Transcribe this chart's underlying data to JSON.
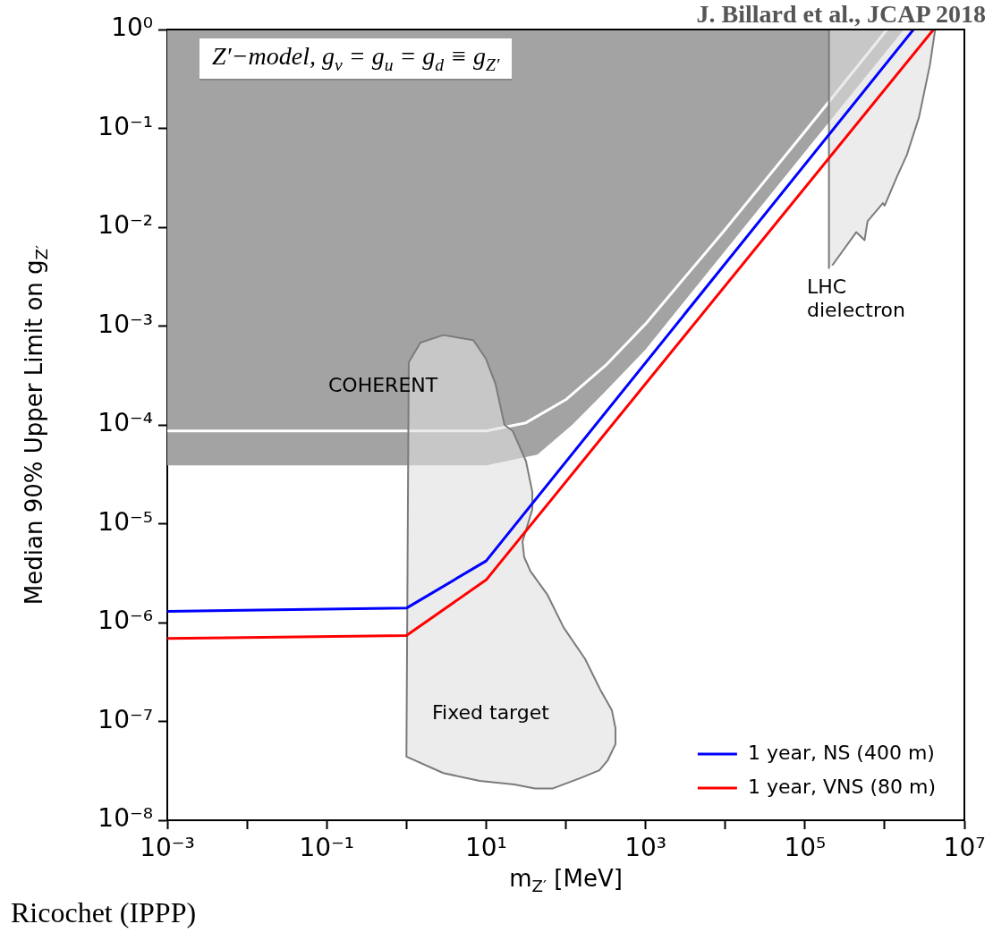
{
  "chart_data": {
    "type": "line",
    "title": "J. Billard et al.,  JCAP 2018",
    "xlabel": "m$_{Z′}$ [MeV]",
    "ylabel": "Median 90% Upper Limit on g$_{Z′}$",
    "log": "xy",
    "grid": false,
    "legend": "bottom right",
    "xlim": [
      0.001,
      10000000
    ],
    "ylim": [
      1e-08,
      1
    ],
    "xticks": [
      {
        "value": 0.001,
        "label": "10⁻³"
      },
      {
        "value": 0.01,
        "label": null
      },
      {
        "value": 0.1,
        "label": "10⁻¹"
      },
      {
        "value": 1,
        "label": null
      },
      {
        "value": 10,
        "label": "10¹"
      },
      {
        "value": 100,
        "label": null
      },
      {
        "value": 1000,
        "label": "10³"
      },
      {
        "value": 10000,
        "label": null
      },
      {
        "value": 100000,
        "label": "10⁵"
      },
      {
        "value": 1000000,
        "label": null
      },
      {
        "value": 10000000,
        "label": "10⁷"
      }
    ],
    "yticks": [
      {
        "value": 1e-08,
        "label": "10⁻⁸"
      },
      {
        "value": 1e-07,
        "label": "10⁻⁷"
      },
      {
        "value": 1e-06,
        "label": "10⁻⁶"
      },
      {
        "value": 1e-05,
        "label": "10⁻⁵"
      },
      {
        "value": 0.0001,
        "label": "10⁻⁴"
      },
      {
        "value": 0.001,
        "label": "10⁻³"
      },
      {
        "value": 0.01,
        "label": "10⁻²"
      },
      {
        "value": 0.1,
        "label": "10⁻¹"
      },
      {
        "value": 1,
        "label": "10⁰"
      }
    ],
    "series": [
      {
        "type": "area",
        "color": "#a3a3a3",
        "x": [
          0.001,
          10,
          44,
          120,
          316,
          1000,
          10000,
          100000,
          1740000,
          0.001
        ],
        "values": [
          3.9e-05,
          3.9e-05,
          5e-05,
          0.0001,
          0.00022,
          0.00058,
          0.0058,
          0.058,
          1,
          1
        ]
      },
      {
        "color": "#ffffff",
        "x": [
          0.001,
          10,
          31.6,
          100,
          316,
          1000,
          10000,
          100000,
          1070000
        ],
        "values": [
          8.7e-05,
          8.7e-05,
          0.000105,
          0.00018,
          0.0004,
          0.00105,
          0.0095,
          0.093,
          1
        ]
      },
      {
        "type": "area",
        "color": "#e0e0e0",
        "x": [
          200000,
          200000,
          4300000,
          3700000,
          2700000,
          1900000,
          1440000,
          1000000,
          950000,
          610000,
          560000,
          440000,
          220000
        ],
        "values": [
          0.0038,
          1,
          1,
          0.44,
          0.13,
          0.054,
          0.033,
          0.0165,
          0.0175,
          0.0115,
          0.0074,
          0.0089,
          0.0041
        ]
      },
      {
        "type": "area",
        "color": "#e0e0e0",
        "x": [
          1.07,
          1.5,
          2.9,
          6.9,
          9.9,
          13.1,
          17,
          21.5,
          31.6,
          38,
          38,
          28.6,
          30,
          36,
          59,
          94,
          174,
          270,
          378,
          420,
          420,
          333,
          264,
          157,
          69,
          41,
          22.6,
          8.3,
          2.9,
          1.0,
          1.07
        ],
        "values": [
          0.00043,
          0.00068,
          0.00081,
          0.00072,
          0.00047,
          0.00026,
          0.0001,
          8.7e-05,
          4.3e-05,
          2.1e-05,
          1.4e-05,
          6.6e-06,
          4.6e-06,
          3.3e-06,
          1.9e-06,
          8.9e-07,
          4.3e-07,
          2.1e-07,
          1.3e-07,
          8.5e-08,
          5.9e-08,
          4e-08,
          3.2e-08,
          2.7e-08,
          2.1e-08,
          2.1e-08,
          2.3e-08,
          2.5e-08,
          3e-08,
          4.4e-08,
          0.00043
        ]
      },
      {
        "name": "1 year, NS (400 m)",
        "color": "#0000ff",
        "x": [
          0.001,
          1,
          10,
          2300000
        ],
        "values": [
          1.3e-06,
          1.4e-06,
          4.2e-06,
          1
        ]
      },
      {
        "name": "1 year, VNS (80 m)",
        "color": "#ff0000",
        "x": [
          0.001,
          1,
          10,
          4100000
        ],
        "values": [
          6.9e-07,
          7.4e-07,
          2.7e-06,
          1
        ]
      }
    ],
    "annotations": [
      "Z′−model,  g$_{ν}$ = g$_{u}$ = g$_{d}$ ≡ g$_{Z′}$",
      "COHERENT",
      "Fixed target",
      "LHC\ndielectron",
      "Ricochet (IPPP)"
    ]
  }
}
